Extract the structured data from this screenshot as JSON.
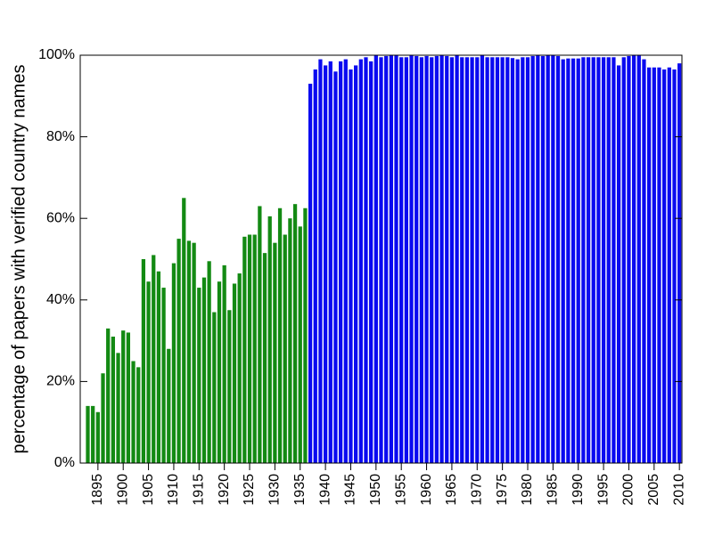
{
  "chart_data": {
    "type": "bar",
    "y_label": "percentage of papers with verified country names",
    "xlim": [
      1891.5,
      2010.5
    ],
    "xticks": [
      1895,
      1900,
      1905,
      1910,
      1915,
      1920,
      1925,
      1930,
      1935,
      1940,
      1945,
      1950,
      1955,
      1960,
      1965,
      1970,
      1975,
      1980,
      1985,
      1990,
      1995,
      2000,
      2005,
      2010
    ],
    "ylim": [
      0,
      100
    ],
    "yticks": [
      {
        "value": 0,
        "label": "0%"
      },
      {
        "value": 20,
        "label": "20%"
      },
      {
        "value": 40,
        "label": "40%"
      },
      {
        "value": 60,
        "label": "60%"
      },
      {
        "value": 80,
        "label": "80%"
      },
      {
        "value": 100,
        "label": "100%"
      }
    ],
    "series": [
      {
        "color": "#138a13",
        "x": [
          1893,
          1894,
          1895,
          1896,
          1897,
          1898,
          1899,
          1900,
          1901,
          1902,
          1903,
          1904,
          1905,
          1906,
          1907,
          1908,
          1909,
          1910,
          1911,
          1912,
          1913,
          1914,
          1915,
          1916,
          1917,
          1918,
          1919,
          1920,
          1921,
          1922,
          1923,
          1924,
          1925,
          1926,
          1927,
          1928,
          1929,
          1930,
          1931,
          1932,
          1933,
          1934,
          1935,
          1936
        ],
        "values": [
          14,
          14,
          12.5,
          22,
          33,
          31,
          27,
          32.5,
          32,
          25,
          23.5,
          50,
          44.5,
          51,
          47,
          43,
          28,
          49,
          55,
          65,
          54.5,
          54,
          43,
          45.5,
          49.5,
          37,
          44.5,
          48.5,
          37.5,
          44,
          46.5,
          55.5,
          56,
          56,
          63,
          51.5,
          60.5,
          54,
          62.5,
          56,
          60,
          63.5,
          58,
          62.5
        ]
      },
      {
        "color": "#0a0af0",
        "x": [
          1937,
          1938,
          1939,
          1940,
          1941,
          1942,
          1943,
          1944,
          1945,
          1946,
          1947,
          1948,
          1949,
          1950,
          1951,
          1952,
          1953,
          1954,
          1955,
          1956,
          1957,
          1958,
          1959,
          1960,
          1961,
          1962,
          1963,
          1964,
          1965,
          1966,
          1967,
          1968,
          1969,
          1970,
          1971,
          1972,
          1973,
          1974,
          1975,
          1976,
          1977,
          1978,
          1979,
          1980,
          1981,
          1982,
          1983,
          1984,
          1985,
          1986,
          1987,
          1988,
          1989,
          1990,
          1991,
          1992,
          1993,
          1994,
          1995,
          1996,
          1997,
          1998,
          1999,
          2000,
          2001,
          2002,
          2003,
          2004,
          2005,
          2006,
          2007,
          2008,
          2009,
          2010
        ],
        "values": [
          93,
          96.5,
          99,
          97.5,
          98.5,
          96,
          98.5,
          99,
          96.5,
          97.5,
          99,
          99.5,
          98.5,
          100,
          99.5,
          99.8,
          100,
          100,
          99.5,
          99.5,
          100,
          99.8,
          99.5,
          99.8,
          99.5,
          99.8,
          100,
          99.8,
          99.5,
          100,
          99.5,
          99.5,
          99.5,
          99.5,
          100,
          99.5,
          99.5,
          99.5,
          99.5,
          99.5,
          99.3,
          99,
          99.5,
          99.5,
          99.8,
          100,
          99.8,
          100,
          100,
          99.8,
          99,
          99.2,
          99.2,
          99.2,
          99.5,
          99.5,
          99.5,
          99.5,
          99.5,
          99.5,
          99.5,
          97.5,
          99.5,
          99.8,
          100,
          100,
          99,
          97,
          97,
          97,
          96.5,
          97,
          96.5,
          98
        ]
      }
    ]
  }
}
